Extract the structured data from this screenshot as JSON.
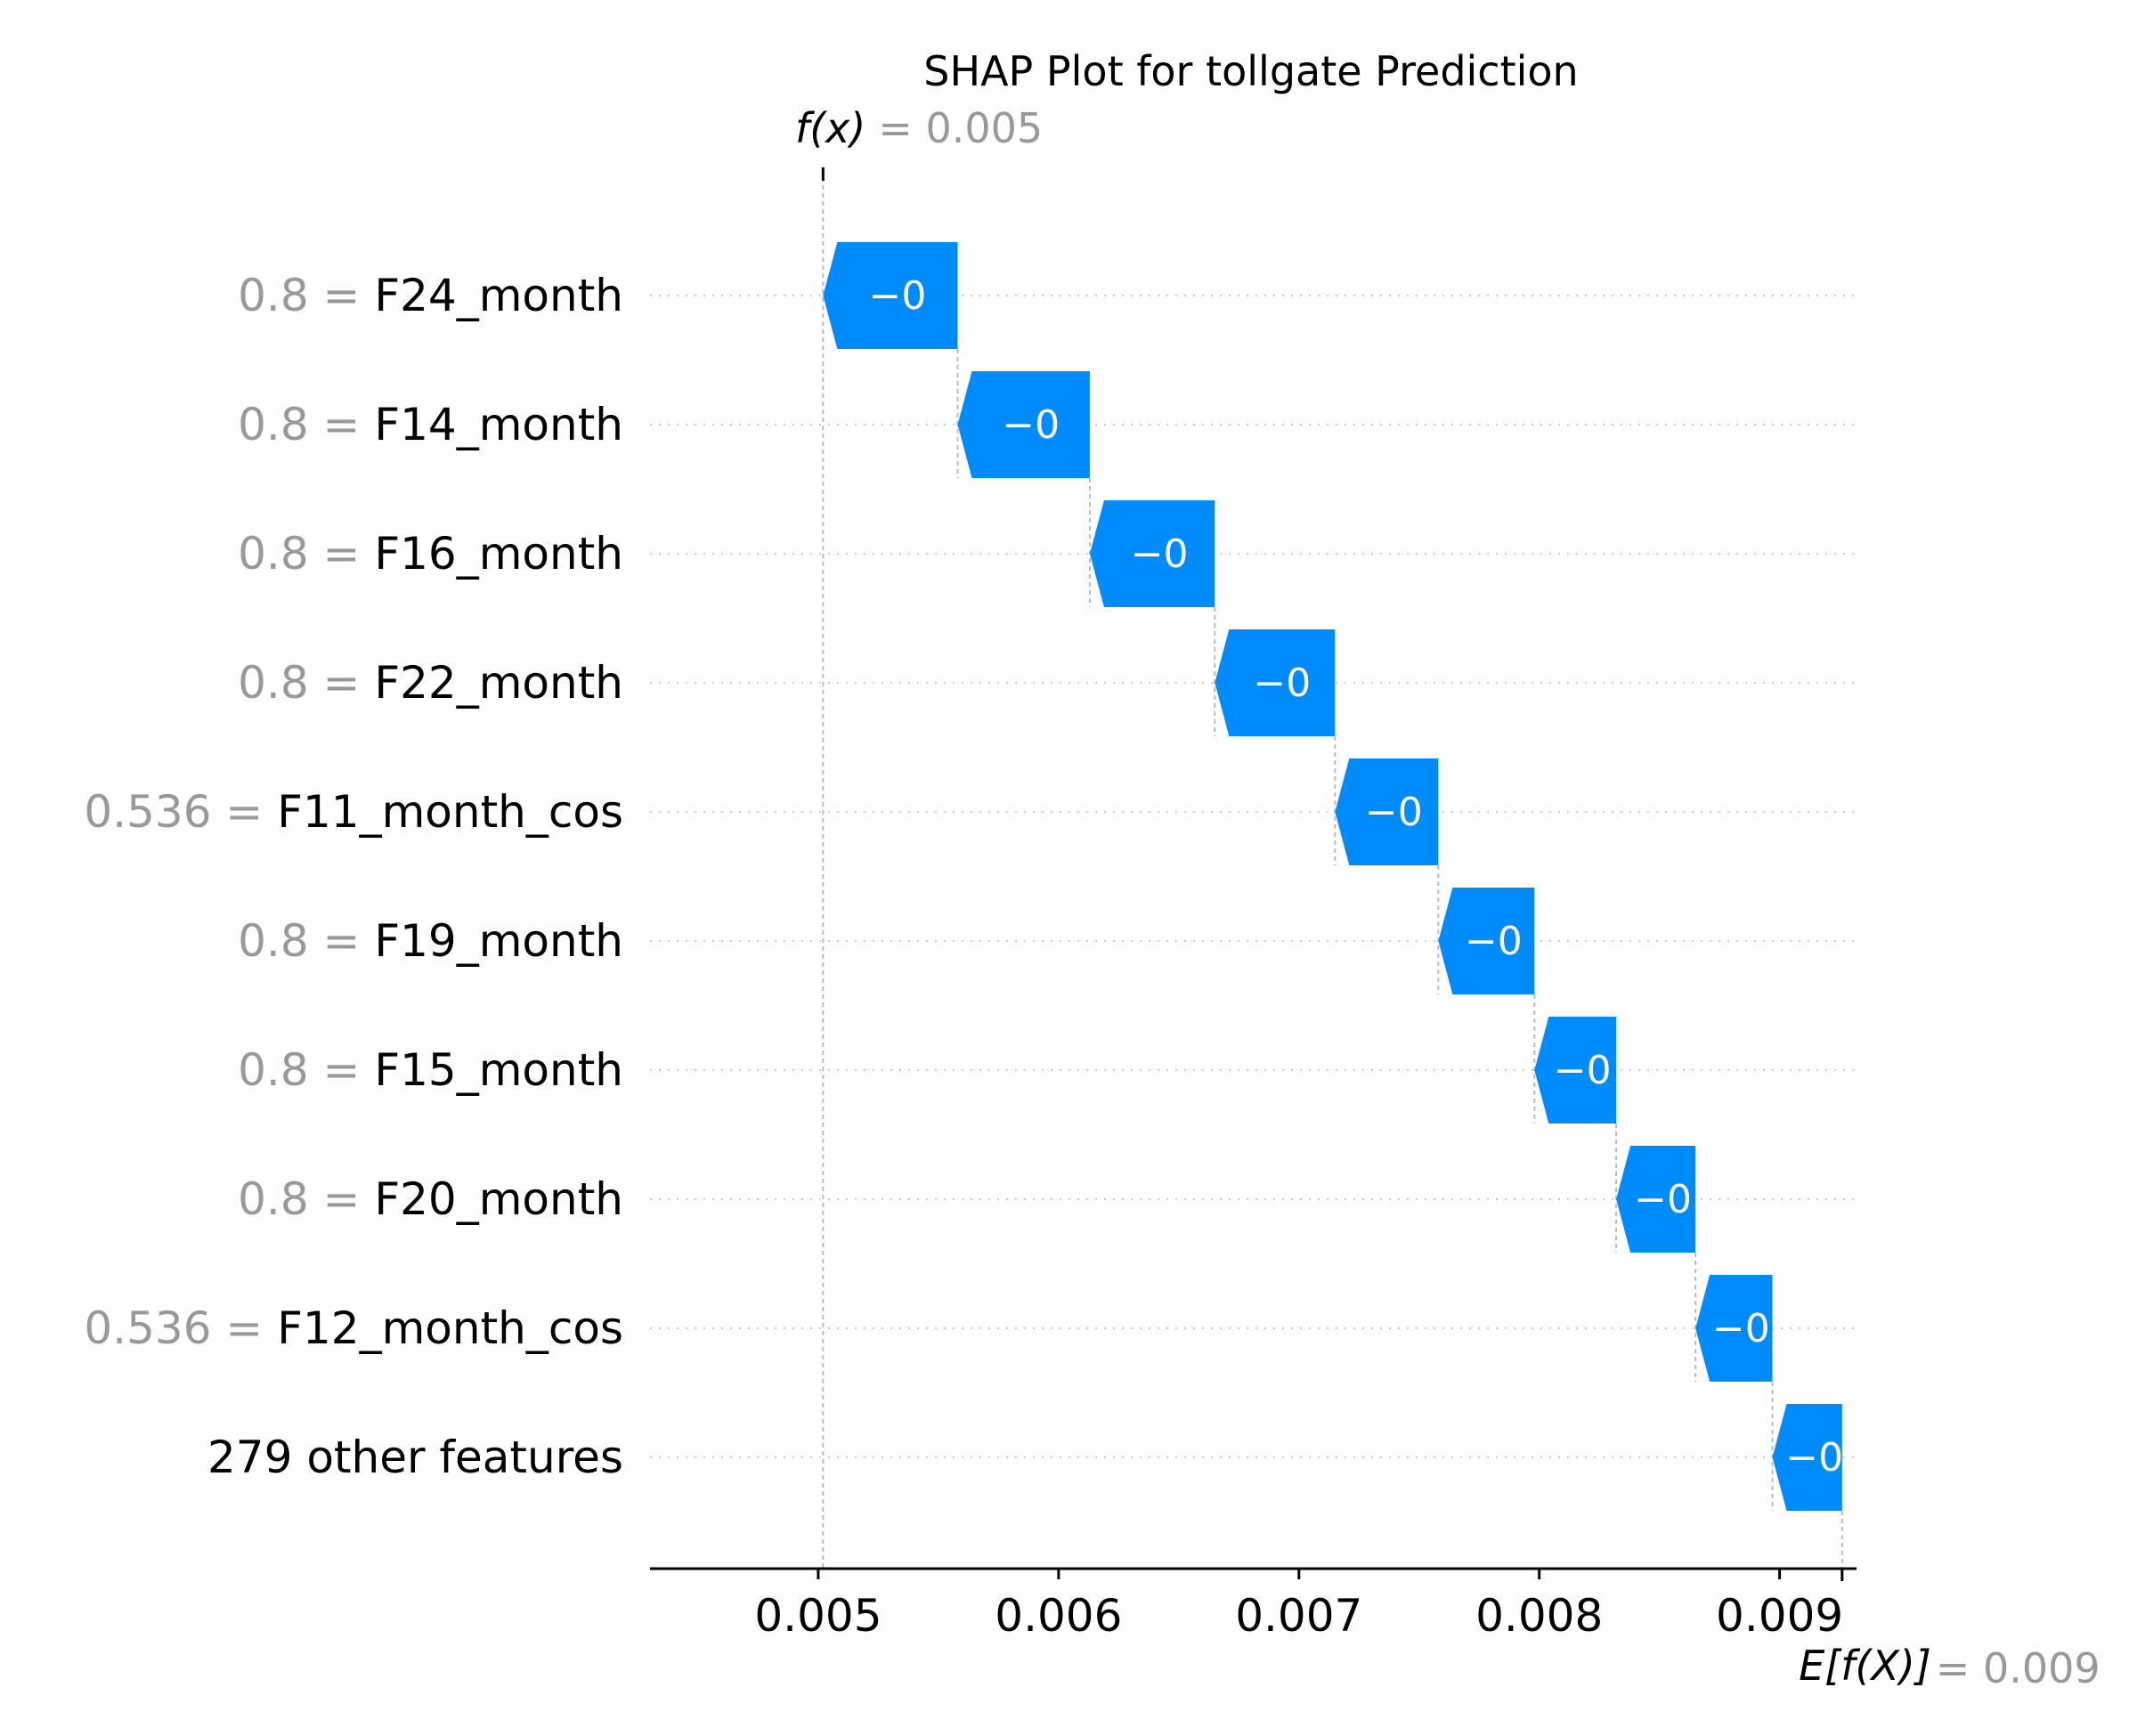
{
  "chart_data": {
    "type": "waterfall",
    "title": "SHAP Plot for tollgate Prediction",
    "fx_label": "f(x)",
    "fx_value_text": "= 0.005",
    "fx_value": 0.00502,
    "ex_label": "E[f(X)]",
    "ex_value_text": "= 0.009",
    "ex_value": 0.00926,
    "xlim": [
      0.0043,
      0.00932
    ],
    "xticks": [
      0.005,
      0.006,
      0.007,
      0.008,
      0.009
    ],
    "xtick_labels": [
      "0.005",
      "0.006",
      "0.007",
      "0.008",
      "0.009"
    ],
    "features": [
      {
        "value": "0.8",
        "name": "F24_month",
        "label": "−0",
        "start": 0.00558,
        "end": 0.00502
      },
      {
        "value": "0.8",
        "name": "F14_month",
        "label": "−0",
        "start": 0.00613,
        "end": 0.00558
      },
      {
        "value": "0.8",
        "name": "F16_month",
        "label": "−0",
        "start": 0.00665,
        "end": 0.00613
      },
      {
        "value": "0.8",
        "name": "F22_month",
        "label": "−0",
        "start": 0.00715,
        "end": 0.00665
      },
      {
        "value": "0.536",
        "name": "F11_month_cos",
        "label": "−0",
        "start": 0.00758,
        "end": 0.00715
      },
      {
        "value": "0.8",
        "name": "F19_month",
        "label": "−0",
        "start": 0.00798,
        "end": 0.00758
      },
      {
        "value": "0.8",
        "name": "F15_month",
        "label": "−0",
        "start": 0.00832,
        "end": 0.00798
      },
      {
        "value": "0.8",
        "name": "F20_month",
        "label": "−0",
        "start": 0.00865,
        "end": 0.00832
      },
      {
        "value": "0.536",
        "name": "F12_month_cos",
        "label": "−0",
        "start": 0.00897,
        "end": 0.00865
      },
      {
        "value": "",
        "name": "279 other features",
        "label": "−0",
        "start": 0.00926,
        "end": 0.00897
      }
    ],
    "colors": {
      "negative": "#008bfb",
      "text": "#000000",
      "muted": "#999999",
      "grid": "#cccccc",
      "bar_text": "#ffffff"
    }
  }
}
